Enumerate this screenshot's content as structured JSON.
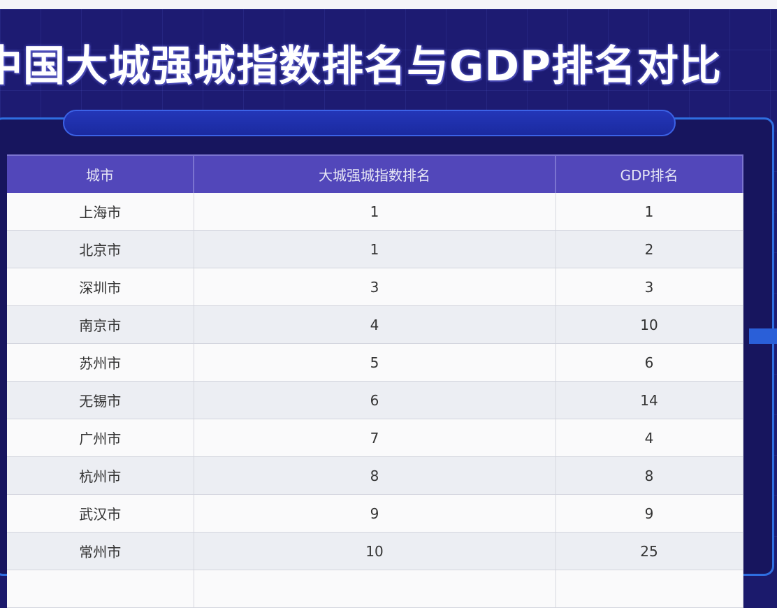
{
  "title": "中国大城强城指数排名与GDP排名对比",
  "table": {
    "headers": [
      "城市",
      "大城强城指数排名",
      "GDP排名"
    ],
    "rows": [
      [
        "上海市",
        "1",
        "1"
      ],
      [
        "北京市",
        "1",
        "2"
      ],
      [
        "深圳市",
        "3",
        "3"
      ],
      [
        "南京市",
        "4",
        "10"
      ],
      [
        "苏州市",
        "5",
        "6"
      ],
      [
        "无锡市",
        "6",
        "14"
      ],
      [
        "广州市",
        "7",
        "4"
      ],
      [
        "杭州市",
        "8",
        "8"
      ],
      [
        "武汉市",
        "9",
        "9"
      ],
      [
        "常州市",
        "10",
        "25"
      ]
    ]
  },
  "colors": {
    "background": "#1d1b72",
    "header": "#5247ba",
    "accent": "#2f6ee0"
  }
}
